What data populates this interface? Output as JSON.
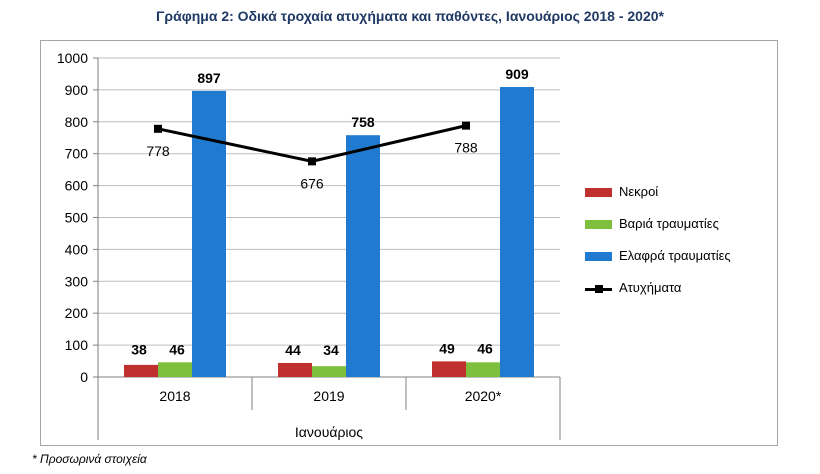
{
  "title": "Γράφημα 2: Οδικά τροχαία ατυχήματα και παθόντες, Ιανουάριος 2018 - 2020*",
  "footnote": "* Προσωρινά στοιχεία",
  "colors": {
    "nekroi": "#c0302e",
    "variа": "#7fbf3e",
    "elafra": "#1f7ad0",
    "atyximata": "#000000"
  },
  "chart_data": {
    "type": "bar",
    "xlabel": "Ιανουάριος",
    "ylabel": "",
    "ylim": [
      0,
      1000
    ],
    "yticks": [
      "0",
      "100",
      "200",
      "300",
      "400",
      "500",
      "600",
      "700",
      "800",
      "900",
      "1000"
    ],
    "categories": [
      "2018",
      "2019",
      "2020*"
    ],
    "series": [
      {
        "name": "Νεκροί",
        "type": "bar",
        "values": [
          38,
          44,
          49
        ],
        "labels": [
          "38",
          "44",
          "49"
        ]
      },
      {
        "name": "Βαριά τραυματίες",
        "type": "bar",
        "values": [
          46,
          34,
          46
        ],
        "labels": [
          "46",
          "34",
          "46"
        ]
      },
      {
        "name": "Ελαφρά τραυματίες",
        "type": "bar",
        "values": [
          897,
          758,
          909
        ],
        "labels": [
          "897",
          "758",
          "909"
        ]
      },
      {
        "name": "Ατυχήματα",
        "type": "line",
        "values": [
          778,
          676,
          788
        ],
        "labels": [
          "778",
          "676",
          "788"
        ]
      }
    ],
    "legend_position": "right"
  }
}
